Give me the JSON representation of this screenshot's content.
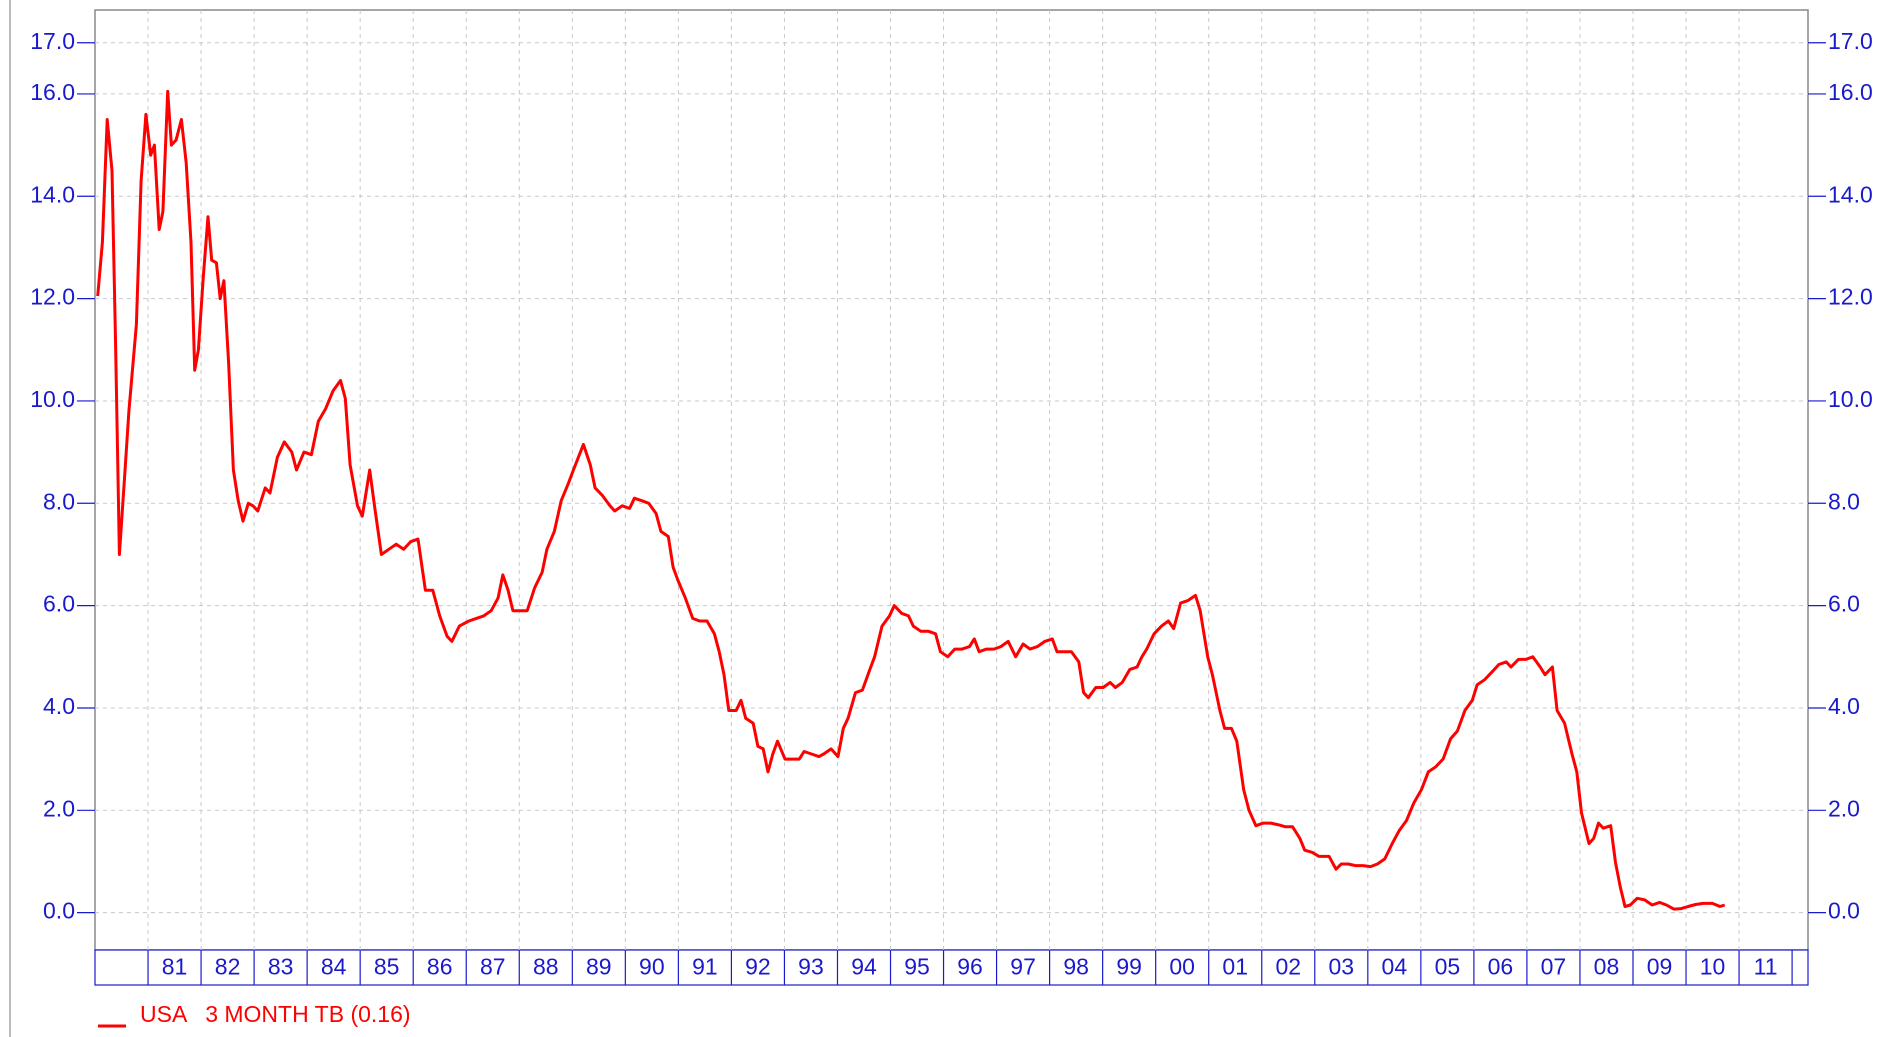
{
  "chart_data": {
    "type": "line",
    "x": [
      1980.05,
      1980.14,
      1980.23,
      1980.32,
      1980.39,
      1980.46,
      1980.55,
      1980.64,
      1980.78,
      1980.87,
      1980.96,
      1981.05,
      1981.12,
      1981.21,
      1981.28,
      1981.37,
      1981.44,
      1981.53,
      1981.63,
      1981.72,
      1981.81,
      1981.88,
      1981.95,
      1982.04,
      1982.13,
      1982.2,
      1982.29,
      1982.36,
      1982.43,
      1982.52,
      1982.61,
      1982.7,
      1982.79,
      1982.89,
      1982.98,
      1983.07,
      1983.21,
      1983.3,
      1983.44,
      1983.57,
      1983.71,
      1983.8,
      1983.94,
      1984.08,
      1984.21,
      1984.35,
      1984.49,
      1984.63,
      1984.72,
      1984.81,
      1984.95,
      1985.04,
      1985.18,
      1985.27,
      1985.4,
      1985.54,
      1985.68,
      1985.82,
      1985.95,
      1986.09,
      1986.23,
      1986.37,
      1986.5,
      1986.64,
      1986.73,
      1986.87,
      1987.05,
      1987.19,
      1987.33,
      1987.47,
      1987.6,
      1987.69,
      1987.79,
      1987.88,
      1988.02,
      1988.15,
      1988.29,
      1988.43,
      1988.52,
      1988.66,
      1988.79,
      1988.93,
      1989.02,
      1989.21,
      1989.34,
      1989.43,
      1989.57,
      1989.71,
      1989.8,
      1989.94,
      1990.08,
      1990.17,
      1990.31,
      1990.44,
      1990.58,
      1990.67,
      1990.81,
      1990.9,
      1990.99,
      1991.13,
      1991.27,
      1991.4,
      1991.54,
      1991.68,
      1991.77,
      1991.86,
      1991.95,
      1992.09,
      1992.18,
      1992.27,
      1992.41,
      1992.5,
      1992.6,
      1992.69,
      1992.78,
      1992.87,
      1993.01,
      1993.14,
      1993.28,
      1993.37,
      1993.51,
      1993.65,
      1993.74,
      1993.88,
      1994.01,
      1994.11,
      1994.2,
      1994.34,
      1994.47,
      1994.61,
      1994.7,
      1994.84,
      1994.98,
      1995.07,
      1995.21,
      1995.34,
      1995.43,
      1995.57,
      1995.71,
      1995.85,
      1995.94,
      1996.08,
      1996.21,
      1996.35,
      1996.49,
      1996.58,
      1996.67,
      1996.81,
      1996.95,
      1997.08,
      1997.22,
      1997.36,
      1997.5,
      1997.63,
      1997.77,
      1997.91,
      1998.05,
      1998.14,
      1998.27,
      1998.41,
      1998.55,
      1998.64,
      1998.73,
      1998.87,
      1999.01,
      1999.14,
      1999.24,
      1999.37,
      1999.51,
      1999.65,
      1999.74,
      1999.83,
      1999.97,
      2000.11,
      2000.24,
      2000.34,
      2000.47,
      2000.61,
      2000.75,
      2000.84,
      2000.98,
      2001.07,
      2001.21,
      2001.3,
      2001.43,
      2001.53,
      2001.66,
      2001.76,
      2001.89,
      2002.03,
      2002.17,
      2002.3,
      2002.44,
      2002.58,
      2002.72,
      2002.81,
      2002.95,
      2003.08,
      2003.27,
      2003.4,
      2003.5,
      2003.63,
      2003.77,
      2003.91,
      2004.05,
      2004.18,
      2004.32,
      2004.46,
      2004.59,
      2004.73,
      2004.87,
      2005.01,
      2005.14,
      2005.28,
      2005.42,
      2005.56,
      2005.69,
      2005.83,
      2005.97,
      2006.06,
      2006.2,
      2006.34,
      2006.47,
      2006.61,
      2006.7,
      2006.84,
      2006.98,
      2007.11,
      2007.25,
      2007.34,
      2007.48,
      2007.57,
      2007.71,
      2007.85,
      2007.94,
      2008.03,
      2008.17,
      2008.26,
      2008.35,
      2008.44,
      2008.58,
      2008.67,
      2008.76,
      2008.85,
      2008.95,
      2009.08,
      2009.22,
      2009.36,
      2009.5,
      2009.63,
      2009.77,
      2009.91,
      2010.04,
      2010.18,
      2010.32,
      2010.5,
      2010.64,
      2010.73
    ],
    "series": [
      {
        "name": "USA   3 MONTH TB (0.16)",
        "color": "#ff0000",
        "values": [
          12.05,
          13.1,
          15.5,
          14.5,
          11.0,
          7.0,
          8.4,
          9.8,
          11.5,
          14.3,
          15.6,
          14.8,
          15.0,
          13.35,
          13.7,
          16.05,
          15.0,
          15.1,
          15.5,
          14.65,
          13.1,
          10.6,
          11.0,
          12.4,
          13.6,
          12.75,
          12.7,
          12.0,
          12.35,
          10.75,
          8.65,
          8.05,
          7.65,
          8.0,
          7.95,
          7.85,
          8.3,
          8.2,
          8.9,
          9.2,
          9.0,
          8.65,
          9.0,
          8.95,
          9.6,
          9.85,
          10.2,
          10.4,
          10.05,
          8.75,
          7.95,
          7.75,
          8.65,
          7.95,
          7.0,
          7.1,
          7.2,
          7.1,
          7.25,
          7.3,
          6.3,
          6.3,
          5.8,
          5.4,
          5.3,
          5.6,
          5.7,
          5.75,
          5.8,
          5.9,
          6.15,
          6.6,
          6.3,
          5.9,
          5.9,
          5.9,
          6.35,
          6.65,
          7.1,
          7.45,
          8.05,
          8.4,
          8.65,
          9.15,
          8.75,
          8.3,
          8.15,
          7.95,
          7.85,
          7.95,
          7.9,
          8.1,
          8.05,
          8.0,
          7.8,
          7.45,
          7.35,
          6.75,
          6.5,
          6.15,
          5.75,
          5.7,
          5.7,
          5.45,
          5.1,
          4.65,
          3.95,
          3.95,
          4.15,
          3.8,
          3.7,
          3.25,
          3.2,
          2.75,
          3.1,
          3.35,
          3.0,
          3.0,
          3.0,
          3.15,
          3.1,
          3.05,
          3.1,
          3.2,
          3.05,
          3.6,
          3.8,
          4.3,
          4.35,
          4.75,
          5.0,
          5.6,
          5.8,
          6.0,
          5.85,
          5.8,
          5.6,
          5.5,
          5.5,
          5.45,
          5.1,
          5.0,
          5.15,
          5.15,
          5.2,
          5.35,
          5.1,
          5.15,
          5.15,
          5.2,
          5.3,
          5.0,
          5.25,
          5.15,
          5.2,
          5.3,
          5.35,
          5.1,
          5.1,
          5.1,
          4.9,
          4.3,
          4.2,
          4.4,
          4.4,
          4.5,
          4.4,
          4.5,
          4.75,
          4.8,
          5.0,
          5.15,
          5.45,
          5.6,
          5.7,
          5.55,
          6.05,
          6.1,
          6.2,
          5.9,
          5.0,
          4.65,
          3.95,
          3.6,
          3.6,
          3.35,
          2.4,
          2.0,
          1.7,
          1.75,
          1.75,
          1.72,
          1.68,
          1.68,
          1.45,
          1.22,
          1.18,
          1.1,
          1.1,
          0.85,
          0.95,
          0.95,
          0.92,
          0.92,
          0.9,
          0.95,
          1.05,
          1.35,
          1.6,
          1.8,
          2.15,
          2.4,
          2.75,
          2.85,
          3.0,
          3.4,
          3.55,
          3.95,
          4.15,
          4.45,
          4.55,
          4.7,
          4.85,
          4.9,
          4.8,
          4.95,
          4.95,
          5.0,
          4.8,
          4.65,
          4.8,
          3.95,
          3.7,
          3.1,
          2.75,
          1.95,
          1.35,
          1.45,
          1.75,
          1.65,
          1.7,
          0.98,
          0.5,
          0.12,
          0.15,
          0.28,
          0.25,
          0.15,
          0.2,
          0.15,
          0.07,
          0.08,
          0.12,
          0.16,
          0.18,
          0.18,
          0.12,
          0.15
        ]
      }
    ],
    "xlim": [
      1980,
      2012.3
    ],
    "xticks": [
      {
        "value": 1981,
        "label": "81"
      },
      {
        "value": 1982,
        "label": "82"
      },
      {
        "value": 1983,
        "label": "83"
      },
      {
        "value": 1984,
        "label": "84"
      },
      {
        "value": 1985,
        "label": "85"
      },
      {
        "value": 1986,
        "label": "86"
      },
      {
        "value": 1987,
        "label": "87"
      },
      {
        "value": 1988,
        "label": "88"
      },
      {
        "value": 1989,
        "label": "89"
      },
      {
        "value": 1990,
        "label": "90"
      },
      {
        "value": 1991,
        "label": "91"
      },
      {
        "value": 1992,
        "label": "92"
      },
      {
        "value": 1993,
        "label": "93"
      },
      {
        "value": 1994,
        "label": "94"
      },
      {
        "value": 1995,
        "label": "95"
      },
      {
        "value": 1996,
        "label": "96"
      },
      {
        "value": 1997,
        "label": "97"
      },
      {
        "value": 1998,
        "label": "98"
      },
      {
        "value": 1999,
        "label": "99"
      },
      {
        "value": 2000,
        "label": "00"
      },
      {
        "value": 2001,
        "label": "01"
      },
      {
        "value": 2002,
        "label": "02"
      },
      {
        "value": 2003,
        "label": "03"
      },
      {
        "value": 2004,
        "label": "04"
      },
      {
        "value": 2005,
        "label": "05"
      },
      {
        "value": 2006,
        "label": "06"
      },
      {
        "value": 2007,
        "label": "07"
      },
      {
        "value": 2008,
        "label": "08"
      },
      {
        "value": 2009,
        "label": "09"
      },
      {
        "value": 2010,
        "label": "10"
      },
      {
        "value": 2011,
        "label": "11"
      }
    ],
    "ylim": [
      -0.73,
      17.64
    ],
    "yticks": [
      {
        "value": 0,
        "label": "0.0"
      },
      {
        "value": 2,
        "label": "2.0"
      },
      {
        "value": 4,
        "label": "4.0"
      },
      {
        "value": 6,
        "label": "6.0"
      },
      {
        "value": 8,
        "label": "8.0"
      },
      {
        "value": 10,
        "label": "10.0"
      },
      {
        "value": 12,
        "label": "12.0"
      },
      {
        "value": 14,
        "label": "14.0"
      },
      {
        "value": 16,
        "label": "16.0"
      },
      {
        "value": 17,
        "label": "17.0"
      }
    ],
    "grid": true
  }
}
